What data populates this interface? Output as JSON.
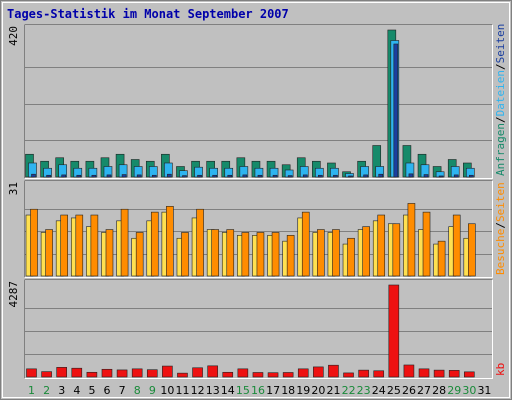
{
  "chart_data": {
    "type": "bar",
    "title": "Tages-Statistik im Monat September 2007",
    "colors": {
      "background": "#c0c0c0",
      "plot_bg": "#c0c0c0",
      "title": "#0000aa",
      "anfragen": "#168a6a",
      "dateien": "#2eb4f0",
      "seiten": "#1a3fa0",
      "besuche": "#ffe050",
      "rechner": "#ff8c00",
      "kb": "#ee1111",
      "day_normal": "#000000",
      "day_weekend": "#1a8a3a"
    },
    "x": [
      "1",
      "2",
      "3",
      "4",
      "5",
      "6",
      "7",
      "8",
      "9",
      "10",
      "11",
      "12",
      "13",
      "14",
      "15",
      "16",
      "17",
      "18",
      "19",
      "20",
      "21",
      "22",
      "23",
      "24",
      "25",
      "26",
      "27",
      "28",
      "29",
      "30",
      "31"
    ],
    "weekend_days": [
      1,
      2,
      8,
      9,
      15,
      16,
      22,
      23,
      29,
      30
    ],
    "panels": [
      {
        "id": "top",
        "ymax_label": "420",
        "ymax": 420,
        "right_label_parts": [
          {
            "text": "Anfragen",
            "color": "#168a6a"
          },
          {
            "text": "/",
            "color": "#000000"
          },
          {
            "text": "Dateien",
            "color": "#2eb4f0"
          },
          {
            "text": "/",
            "color": "#000000"
          },
          {
            "text": "Seiten",
            "color": "#1a3fa0"
          }
        ],
        "series": [
          {
            "key": "anfragen",
            "values": [
              65,
              45,
              55,
              45,
              45,
              55,
              65,
              50,
              45,
              65,
              30,
              45,
              45,
              45,
              55,
              45,
              45,
              35,
              55,
              45,
              40,
              15,
              45,
              90,
              420,
              90,
              65,
              30,
              50,
              40,
              0
            ]
          },
          {
            "key": "dateien",
            "values": [
              40,
              25,
              35,
              25,
              25,
              30,
              35,
              30,
              30,
              40,
              18,
              28,
              25,
              25,
              30,
              25,
              25,
              20,
              30,
              25,
              25,
              10,
              30,
              30,
              390,
              40,
              35,
              15,
              30,
              25,
              0
            ]
          },
          {
            "key": "seiten",
            "values": [
              8,
              5,
              6,
              5,
              5,
              6,
              7,
              6,
              5,
              8,
              4,
              5,
              5,
              5,
              6,
              5,
              5,
              4,
              6,
              5,
              5,
              3,
              6,
              8,
              380,
              9,
              7,
              3,
              6,
              5,
              0
            ]
          }
        ]
      },
      {
        "id": "middle",
        "ymax_label": "31",
        "ymax": 31,
        "right_label_parts": [
          {
            "text": "Besuche",
            "color": "#ff8c00"
          },
          {
            "text": "/",
            "color": "#000000"
          },
          {
            "text": "Seiten",
            "color": "#ff8c00"
          }
        ],
        "series": [
          {
            "key": "besuche",
            "values": [
              21,
              15,
              19,
              20,
              17,
              15,
              19,
              13,
              19,
              22,
              13,
              20,
              16,
              15,
              14,
              14,
              14,
              12,
              20,
              15,
              15,
              11,
              16,
              19,
              18,
              21,
              16,
              11,
              17,
              13,
              0
            ]
          },
          {
            "key": "rechner",
            "values": [
              23,
              16,
              21,
              21,
              21,
              16,
              23,
              15,
              22,
              24,
              15,
              23,
              16,
              16,
              15,
              15,
              15,
              14,
              22,
              16,
              16,
              13,
              17,
              21,
              18,
              25,
              22,
              12,
              21,
              18,
              0
            ]
          }
        ]
      },
      {
        "id": "bottom",
        "ymax_label": "4287",
        "ymax": 4287,
        "right_label_parts": [
          {
            "text": "kb",
            "color": "#ee1111"
          }
        ],
        "series": [
          {
            "key": "kb",
            "values": [
              380,
              250,
              450,
              410,
              220,
              360,
              330,
              380,
              340,
              510,
              180,
              430,
              520,
              220,
              380,
              210,
              200,
              210,
              380,
              470,
              550,
              190,
              320,
              290,
              4287,
              560,
              380,
              320,
              310,
              240,
              0
            ]
          }
        ]
      }
    ]
  }
}
